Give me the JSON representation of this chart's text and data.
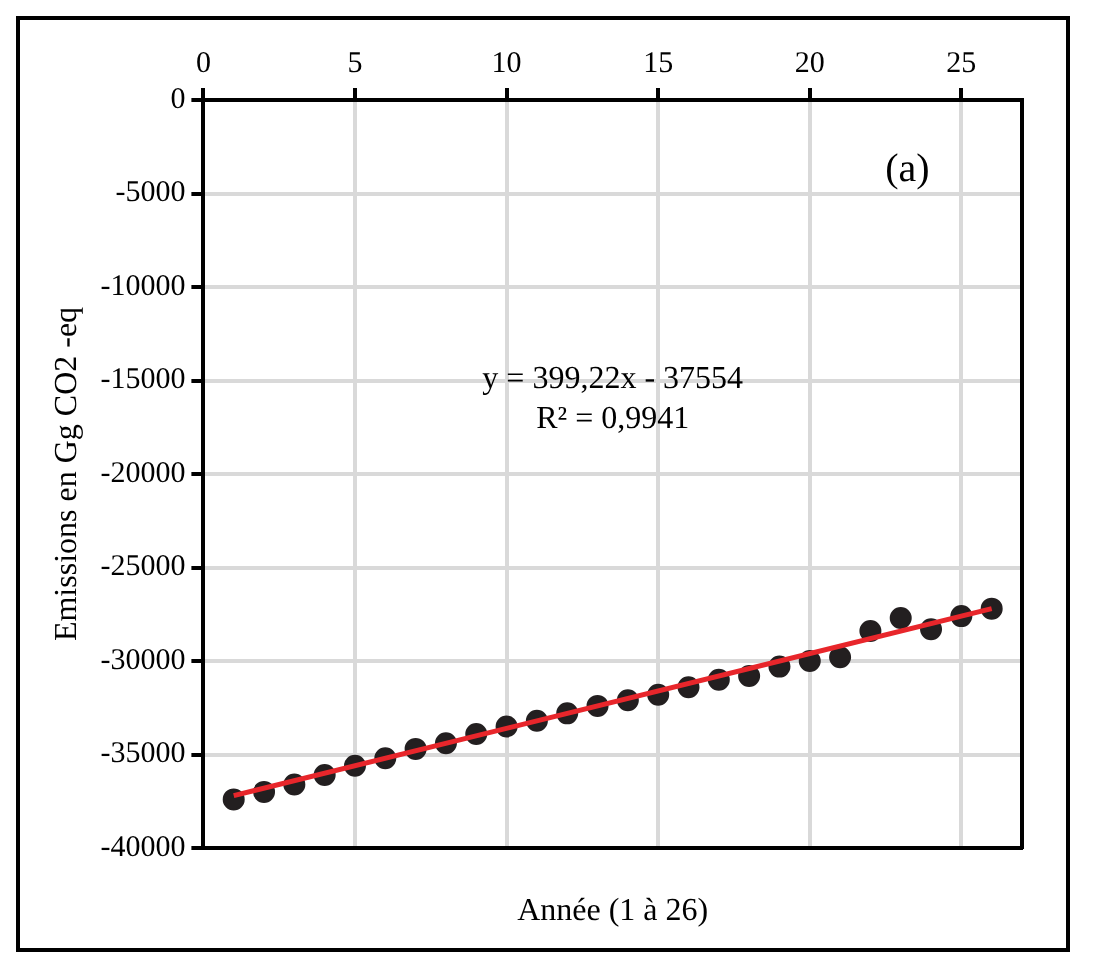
{
  "chart_data": {
    "type": "scatter",
    "xlabel": "Année (1 à 26)",
    "ylabel": "Emissions en Gg CO2 -eq",
    "annotations": [
      "(a)",
      "y = 399,22x - 37554",
      "R² = 0,9941"
    ],
    "xlim": [
      0,
      27
    ],
    "xticks": [
      0,
      5,
      10,
      15,
      20,
      25
    ],
    "ylim": [
      -40000,
      0
    ],
    "yticks": [
      -40000,
      -35000,
      -30000,
      -25000,
      -20000,
      -15000,
      -10000,
      -5000,
      0
    ],
    "grid": true,
    "legend": false,
    "marker": "circle",
    "series": [
      {
        "color": "#231f20",
        "x": [
          1,
          2,
          3,
          4,
          5,
          6,
          7,
          8,
          9,
          10,
          11,
          12,
          13,
          14,
          15,
          16,
          17,
          18,
          19,
          20,
          21,
          22,
          23,
          24,
          25,
          26
        ],
        "values": [
          -37400,
          -37000,
          -36600,
          -36100,
          -35600,
          -35200,
          -34700,
          -34400,
          -33900,
          -33500,
          -33200,
          -32800,
          -32400,
          -32100,
          -31800,
          -31400,
          -31000,
          -30800,
          -30300,
          -30000,
          -29800,
          -28400,
          -27700,
          -28300,
          -27600,
          -27200
        ]
      },
      {
        "type": "line",
        "color": "#e8262b",
        "x": [
          1,
          26
        ],
        "values": [
          -37200,
          -27200
        ],
        "marker": "none"
      }
    ]
  }
}
